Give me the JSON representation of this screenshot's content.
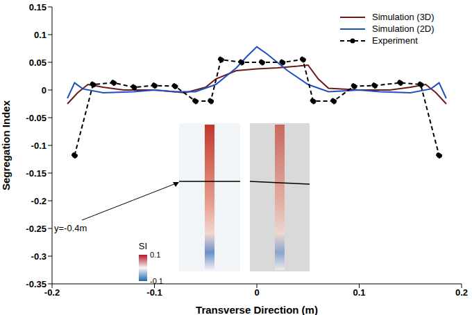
{
  "chart_data": {
    "type": "line",
    "x_label": "Transverse Direction (m)",
    "y_label": "Segregation Index",
    "xlim": [
      -0.2,
      0.2
    ],
    "xticks": [
      -0.2,
      -0.1,
      0,
      0.1,
      0.2
    ],
    "ylim": [
      -0.35,
      0.15
    ],
    "yticks": [
      -0.35,
      -0.3,
      -0.25,
      -0.2,
      -0.15,
      -0.1,
      -0.05,
      0,
      0.05,
      0.1,
      0.15
    ],
    "grid": false,
    "legend": "upper right",
    "series": [
      {
        "name": "Simulation (3D)",
        "color": "#6b1a1a",
        "line_style": "solid",
        "marker": "none",
        "x": [
          -0.185,
          -0.175,
          -0.165,
          -0.15,
          -0.13,
          -0.1,
          -0.07,
          -0.05,
          -0.04,
          -0.02,
          0,
          0.02,
          0.04,
          0.05,
          0.06,
          0.07,
          0.1,
          0.13,
          0.15,
          0.165,
          0.175,
          0.185
        ],
        "values": [
          -0.025,
          -0.005,
          0.01,
          0.005,
          0,
          0,
          -0.005,
          0.005,
          0.02,
          0.035,
          0.038,
          0.04,
          0.043,
          0.045,
          0.02,
          0.003,
          0,
          0,
          0.005,
          0.01,
          -0.005,
          -0.025
        ]
      },
      {
        "name": "Simulation (2D)",
        "color": "#1f4fbf",
        "line_style": "solid",
        "marker": "none",
        "x": [
          -0.185,
          -0.178,
          -0.17,
          -0.15,
          -0.12,
          -0.1,
          -0.08,
          -0.06,
          -0.04,
          -0.02,
          -0.01,
          0,
          0.01,
          0.03,
          0.05,
          0.07,
          0.1,
          0.12,
          0.15,
          0.17,
          0.178,
          0.185
        ],
        "values": [
          -0.015,
          0.013,
          0.002,
          -0.005,
          -0.003,
          0,
          -0.003,
          -0.003,
          0.01,
          0.04,
          0.06,
          0.078,
          0.065,
          0.035,
          0.01,
          -0.003,
          0,
          -0.003,
          -0.005,
          0.002,
          0.013,
          -0.015
        ]
      },
      {
        "name": "Experiment",
        "color": "#000000",
        "line_style": "dashed",
        "marker": "circle",
        "x": [
          -0.178,
          -0.16,
          -0.14,
          -0.12,
          -0.1,
          -0.08,
          -0.06,
          -0.045,
          -0.035,
          -0.015,
          0.005,
          0.025,
          0.045,
          0.055,
          0.075,
          0.095,
          0.115,
          0.14,
          0.16,
          0.178
        ],
        "values": [
          -0.118,
          0.01,
          0.013,
          0.005,
          0.008,
          0.007,
          -0.02,
          -0.02,
          0.055,
          0.05,
          0.05,
          0.05,
          0.055,
          -0.02,
          -0.02,
          0.007,
          0.008,
          0.013,
          0.01,
          -0.118
        ]
      }
    ],
    "colorbar": {
      "label": "SI",
      "range": [
        -0.1,
        0.1
      ],
      "ticks": [
        -0.1,
        0.1
      ]
    },
    "annotations": [
      {
        "text": "y=-0.4m"
      }
    ]
  }
}
